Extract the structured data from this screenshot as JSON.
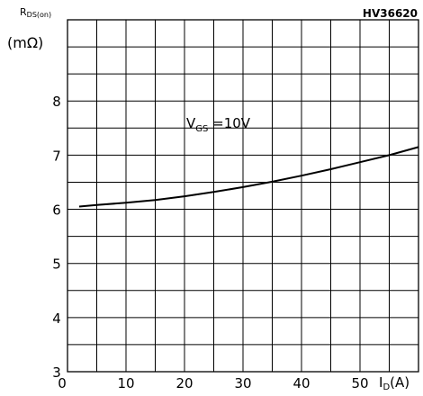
{
  "chart_data": {
    "type": "line",
    "code": "HV36620",
    "ylabel_main": "R",
    "ylabel_sub": "DS(on)",
    "yunit": "(mΩ)",
    "xlabel_main": "I",
    "xlabel_sub": "D",
    "xunit": "(A)",
    "xlim": [
      0,
      60
    ],
    "ylim": [
      3,
      9.5
    ],
    "xticks": [
      0,
      10,
      20,
      30,
      40,
      50
    ],
    "yticks": [
      3,
      4,
      5,
      6,
      7,
      8
    ],
    "grid": true,
    "annotation": {
      "main": "V",
      "sub": "GS",
      "rest": " =10V"
    },
    "series": [
      {
        "x": [
          2,
          5,
          10,
          15,
          20,
          25,
          30,
          35,
          40,
          45,
          50,
          55,
          60
        ],
        "y": [
          6.05,
          6.08,
          6.12,
          6.17,
          6.24,
          6.32,
          6.41,
          6.51,
          6.62,
          6.74,
          6.87,
          7.0,
          7.15
        ]
      }
    ]
  }
}
